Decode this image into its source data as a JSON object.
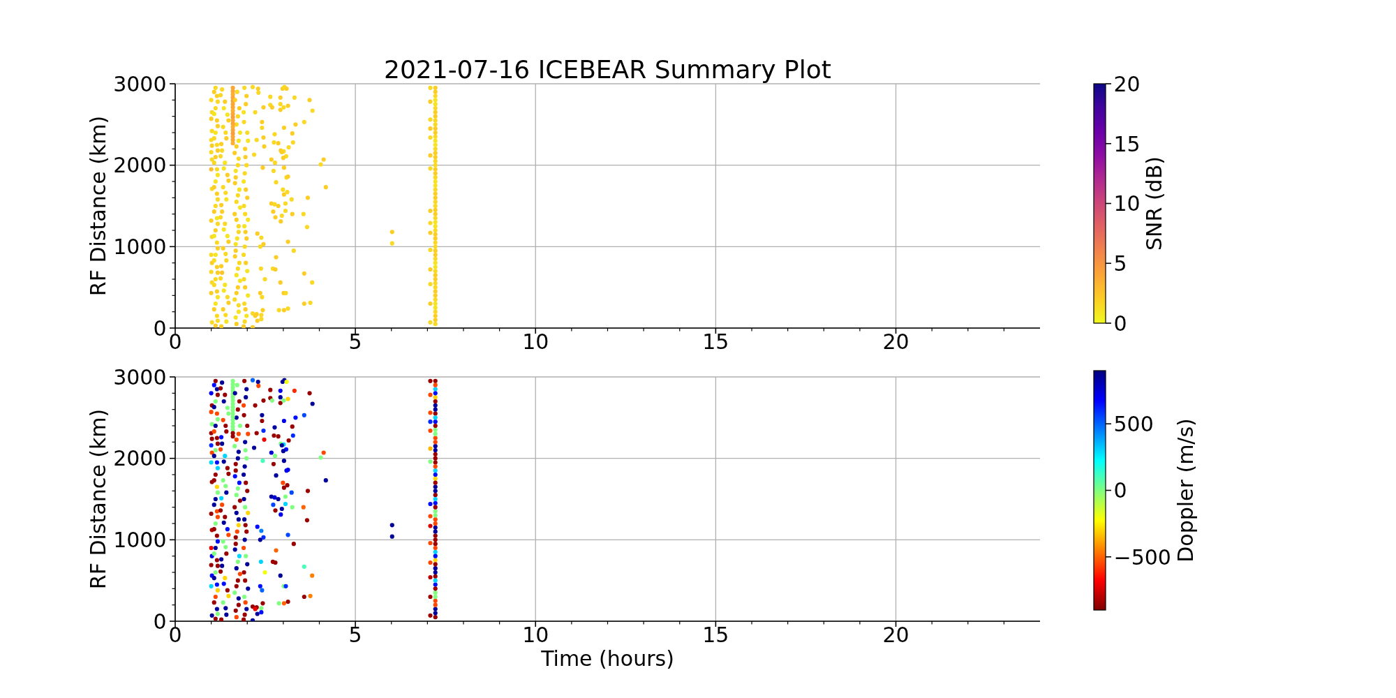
{
  "chart_data": [
    {
      "type": "scatter",
      "title": "2021-07-16 ICEBEAR Summary Plot",
      "ylabel": "RF Distance (km)",
      "clabel": "SNR (dB)",
      "x": [
        1.0,
        1.02,
        1.0,
        1.02,
        1.0,
        1.02,
        1.0,
        1.02,
        1.0,
        1.02,
        1.0,
        1.02,
        1.0,
        1.02,
        1.0,
        1.02,
        1.0,
        1.02,
        1.12,
        1.16,
        1.12,
        1.16,
        1.12,
        1.16,
        1.12,
        1.16,
        1.12,
        1.16,
        1.12,
        1.16,
        1.12,
        1.16,
        1.12,
        1.16,
        1.12,
        1.16,
        1.12,
        1.16,
        1.12,
        1.3,
        1.38,
        1.45,
        1.33,
        1.42,
        1.3,
        1.38,
        1.45,
        1.33,
        1.42,
        1.3,
        1.38,
        1.45,
        1.33,
        1.42,
        1.3,
        1.38,
        1.45,
        1.33,
        1.42,
        1.72,
        1.78,
        1.7,
        1.76,
        1.65,
        1.74,
        1.68,
        1.78,
        1.7,
        1.65,
        1.76,
        1.72,
        1.68,
        1.78,
        1.7,
        1.74,
        1.65,
        1.76,
        1.7,
        1.6,
        1.6,
        1.6,
        1.6,
        1.6,
        1.6,
        1.6,
        1.6,
        1.6,
        1.6,
        1.6,
        1.6,
        1.6,
        1.6,
        1.6,
        1.6,
        1.6,
        1.6,
        1.92,
        1.98,
        1.9,
        2.0,
        1.94,
        1.98,
        1.9,
        2.0,
        1.94,
        1.92,
        1.98,
        1.9,
        2.0,
        1.94,
        1.92,
        1.98,
        1.9,
        2.15,
        2.3,
        2.31,
        2.98,
        3.03,
        3.09,
        2.64,
        2.92,
        3.31,
        3.73,
        3.81,
        2.45,
        2.64,
        2.69,
        2.92,
        2.92,
        3.01,
        3.13,
        2.22,
        2.41,
        2.41,
        3.34,
        3.58,
        3.02,
        2.76,
        3.25,
        2.26,
        2.45,
        2.74,
        2.86,
        3.27,
        2.47,
        3.15,
        2.93,
        3.01,
        2.96,
        3.08,
        3.0,
        2.19,
        2.67,
        2.77,
        4.12,
        4.04,
        2.43,
        2.73,
        3.02,
        3.09,
        3.13,
        2.8,
        4.18,
        2.99,
        3.02,
        3.11,
        3.68,
        3.23,
        2.67,
        2.76,
        2.86,
        3.06,
        2.72,
        3.06,
        3.25,
        3.56,
        2.78,
        2.96,
        2.93,
        3.66,
        6.02,
        6.02,
        3.13,
        2.39,
        2.45,
        2.36,
        2.28,
        3.29,
        2.8,
        2.71,
        2.78,
        2.38,
        3.58,
        2.49,
        2.92,
        3.8,
        2.36,
        2.41,
        3.01,
        3.07,
        2.43,
        2.88,
        3.02,
        3.13,
        3.58,
        3.75,
        2.26,
        2.39,
        2.28,
        2.39,
        2.15,
        2.15,
        2.22,
        7.08,
        7.08,
        7.08,
        7.08,
        7.08,
        7.08,
        7.08,
        7.08,
        7.08,
        7.08,
        7.08,
        7.08,
        7.08,
        7.08,
        7.08,
        7.22,
        7.22,
        7.22,
        7.22,
        7.22,
        7.22,
        7.22,
        7.22,
        7.22,
        7.22,
        7.22,
        7.22,
        7.22,
        7.22,
        7.22,
        7.22,
        7.22,
        7.22,
        7.22,
        7.22,
        7.22,
        7.22,
        7.22,
        7.22,
        7.22,
        7.22,
        7.22,
        7.22,
        7.22,
        7.22,
        1.08,
        1.18,
        1.08,
        1.18,
        1.08,
        1.18,
        1.08,
        1.18,
        1.08,
        1.18,
        1.08,
        1.18,
        1.08,
        1.18,
        1.08,
        1.18,
        1.08,
        1.18,
        1.08,
        1.18,
        1.26,
        1.35,
        1.48,
        1.4,
        1.28,
        1.26,
        1.35,
        1.48,
        1.4,
        1.28,
        1.26,
        1.35,
        1.48,
        1.4,
        1.28,
        1.26,
        1.35,
        1.48,
        1.4,
        1.28,
        1.66,
        1.74,
        1.8,
        1.7,
        1.76,
        1.68,
        1.66,
        1.74,
        1.8,
        1.7,
        1.76,
        1.68,
        1.66,
        1.74,
        1.8,
        1.7,
        1.76,
        1.68,
        1.96,
        1.91,
        2.02,
        1.95,
        1.93,
        1.96,
        1.91,
        2.02,
        1.95,
        1.93,
        1.96,
        1.91,
        2.02,
        1.95,
        1.93,
        7.22,
        7.22,
        7.22,
        7.22,
        7.22,
        7.22,
        7.22,
        7.22,
        7.22,
        7.22,
        7.22,
        7.22,
        7.22,
        7.22,
        7.22,
        7.22,
        7.22,
        7.22,
        7.22,
        7.22,
        7.22,
        7.22,
        7.22,
        7.22,
        7.22,
        7.22,
        7.22,
        7.22,
        7.22
      ],
      "values": [
        2800,
        2650,
        2570,
        2420,
        2310,
        2240,
        2160,
        2070,
        1950,
        1710,
        1320,
        1120,
        900,
        800,
        690,
        560,
        430,
        70,
        2950,
        2850,
        2700,
        2550,
        2400,
        2250,
        2100,
        1950,
        1800,
        1650,
        1500,
        1350,
        1200,
        1050,
        900,
        750,
        600,
        450,
        300,
        150,
        30,
        2930,
        2780,
        2620,
        2470,
        2330,
        2180,
        2030,
        1880,
        1730,
        1580,
        1430,
        1280,
        1130,
        980,
        830,
        680,
        530,
        380,
        230,
        80,
        2900,
        2700,
        2500,
        2300,
        2150,
        2000,
        1850,
        1700,
        1550,
        1400,
        1250,
        1100,
        950,
        800,
        650,
        500,
        350,
        200,
        50,
        2950,
        2910,
        2870,
        2830,
        2790,
        2750,
        2710,
        2670,
        2630,
        2590,
        2550,
        2510,
        2470,
        2430,
        2390,
        2350,
        2310,
        2270,
        2950,
        2850,
        2650,
        2400,
        2200,
        2000,
        1800,
        1600,
        1400,
        1250,
        1100,
        900,
        700,
        500,
        300,
        150,
        20,
        2960,
        2940,
        2890,
        2940,
        2960,
        2940,
        2840,
        2830,
        2830,
        2800,
        2670,
        2710,
        2740,
        2710,
        2750,
        2680,
        2710,
        2730,
        2650,
        2530,
        2460,
        2500,
        2530,
        2460,
        2380,
        2390,
        2310,
        2340,
        2280,
        2270,
        2280,
        2230,
        2220,
        2180,
        2170,
        2160,
        2110,
        2090,
        2130,
        2070,
        2030,
        2070,
        2010,
        1970,
        1930,
        1970,
        1850,
        1860,
        1790,
        1730,
        1700,
        1640,
        1670,
        1600,
        1580,
        1530,
        1520,
        1500,
        1530,
        1430,
        1440,
        1400,
        1400,
        1360,
        1380,
        1310,
        1240,
        1180,
        1040,
        1060,
        1110,
        1030,
        1000,
        1160,
        950,
        870,
        730,
        720,
        730,
        670,
        600,
        560,
        560,
        430,
        380,
        430,
        430,
        220,
        220,
        220,
        240,
        300,
        310,
        170,
        160,
        90,
        110,
        10,
        180,
        150,
        2950,
        2780,
        2560,
        2450,
        2340,
        2120,
        1960,
        1440,
        1290,
        1170,
        960,
        720,
        540,
        300,
        70,
        50,
        150,
        250,
        350,
        450,
        550,
        650,
        750,
        850,
        950,
        1050,
        1150,
        1250,
        1350,
        1450,
        1550,
        1650,
        1750,
        1850,
        1950,
        2050,
        2150,
        2250,
        2350,
        2450,
        2550,
        2650,
        2750,
        2850,
        2950,
        2900,
        2780,
        2630,
        2480,
        2330,
        2180,
        2030,
        1880,
        1730,
        1580,
        1430,
        1280,
        1130,
        980,
        830,
        680,
        530,
        380,
        230,
        90,
        2860,
        2700,
        2550,
        2400,
        2260,
        2110,
        1960,
        1810,
        1660,
        1510,
        1360,
        1210,
        1060,
        910,
        760,
        610,
        460,
        310,
        160,
        20,
        2800,
        2600,
        2400,
        2230,
        2080,
        1930,
        1780,
        1630,
        1480,
        1330,
        1180,
        1030,
        880,
        730,
        580,
        430,
        280,
        130,
        2750,
        2530,
        2300,
        2100,
        1900,
        1700,
        1500,
        1330,
        1180,
        1000,
        800,
        600,
        400,
        230,
        80,
        100,
        200,
        300,
        400,
        500,
        600,
        700,
        800,
        900,
        1000,
        1100,
        1200,
        1300,
        1400,
        1500,
        1600,
        1700,
        1800,
        1900,
        2000,
        2100,
        2200,
        2300,
        2400,
        2500,
        2600,
        2700,
        2800,
        2900
      ],
      "cvalues": [
        1.5,
        1.5,
        2,
        1.5,
        1.5,
        2,
        1.5,
        1.5,
        3,
        1.5,
        2,
        1.5,
        1.5,
        2,
        1.5,
        1.5,
        2,
        1.5,
        1.5,
        2,
        1.5,
        2,
        1,
        1.5,
        2,
        1.5,
        1,
        2,
        1.5,
        1,
        2,
        1.5,
        1,
        2,
        1.5,
        2,
        1,
        1.5,
        2,
        1.5,
        2,
        1,
        1.5,
        2,
        1.5,
        1,
        2,
        1.5,
        1,
        2,
        1.5,
        1,
        2,
        1.5,
        2.5,
        1,
        1.5,
        2,
        1,
        1.5,
        2,
        1.5,
        1,
        2,
        1.5,
        2,
        1,
        1.5,
        2,
        1.5,
        1,
        2,
        1.5,
        1,
        2,
        1.5,
        1,
        2,
        4,
        4,
        3.5,
        4,
        4.5,
        4,
        4,
        3.5,
        4,
        4.5,
        4,
        4,
        3.5,
        4,
        4.5,
        4,
        4,
        3.5,
        1.5,
        2,
        1,
        1.5,
        2,
        1.5,
        1,
        2,
        1.5,
        1,
        2,
        1.5,
        1,
        2,
        1.5,
        1,
        2,
        1.5,
        2,
        1.5,
        2,
        1.5,
        2,
        1.5,
        2,
        1.5,
        2,
        1.5,
        2,
        1.5,
        2,
        1.5,
        2,
        1.5,
        2,
        1.5,
        2,
        1.5,
        2,
        1.5,
        2,
        1.5,
        2,
        1.5,
        2,
        1.5,
        2,
        1.5,
        2,
        1.5,
        2,
        1.5,
        2,
        1.5,
        2,
        1.5,
        2,
        1.5,
        2,
        1.5,
        2,
        1.5,
        2,
        1.5,
        2,
        1.5,
        2,
        1.5,
        2,
        1.5,
        2,
        1.5,
        2,
        1.5,
        2,
        1.5,
        2,
        1.5,
        2,
        1.5,
        2,
        1.5,
        2,
        1.5,
        2,
        1.5,
        2,
        1.5,
        2,
        1.5,
        2,
        1.5,
        2,
        1.5,
        2,
        1.5,
        2,
        1.5,
        2,
        1.5,
        2,
        1.5,
        2,
        1.5,
        2,
        1.5,
        2,
        1.5,
        2,
        1.5,
        2,
        1.5,
        2,
        1.5,
        2,
        1.5,
        2,
        1.5,
        2,
        1.5,
        2,
        1.5,
        2,
        1.5,
        2,
        1.5,
        2,
        1.5,
        2,
        1.5,
        2,
        1.5,
        1.5,
        2,
        1,
        1.5,
        2,
        1.5,
        2,
        1,
        1.5,
        2,
        1.5,
        2,
        1,
        1.5,
        2,
        1.5,
        2,
        1,
        1.5,
        2,
        1.5,
        2,
        1,
        1.5,
        2,
        1.5,
        2,
        1,
        1.5,
        2,
        2,
        1.5,
        1,
        2,
        1.5,
        2,
        1.5,
        1,
        2,
        1.5,
        2,
        1.5,
        1,
        2,
        1.5,
        2,
        1.5,
        1,
        2,
        1.5,
        1.5,
        1,
        2,
        1.5,
        2,
        1.5,
        1,
        2,
        1.5,
        2,
        1.5,
        1,
        2,
        1.5,
        2,
        1.5,
        1,
        2,
        1.5,
        2,
        2,
        1.5,
        1,
        2,
        1.5,
        1,
        2,
        1.5,
        1,
        2,
        1.5,
        1,
        2,
        1.5,
        1,
        2,
        1.5,
        1,
        2,
        1.5,
        1,
        2,
        1.5,
        2,
        1.5,
        1,
        2,
        1.5,
        2,
        1.5,
        1,
        2,
        1.5,
        2,
        1.5,
        1,
        2,
        1.5,
        2,
        1.5,
        1,
        2,
        1.5,
        2,
        1.5,
        1,
        2,
        1.5,
        2,
        1.5,
        1,
        2,
        1.5,
        2,
        1.5,
        1,
        2,
        1.5,
        2,
        1.5,
        1,
        2
      ],
      "xlim": [
        0,
        24
      ],
      "xticks": [
        0,
        {
          "value": 1,
          "label": null
        },
        {
          "value": 2,
          "label": null
        },
        {
          "value": 3,
          "label": null
        },
        {
          "value": 4,
          "label": null
        },
        5,
        {
          "value": 6,
          "label": null
        },
        {
          "value": 7,
          "label": null
        },
        {
          "value": 8,
          "label": null
        },
        {
          "value": 9,
          "label": null
        },
        10,
        {
          "value": 11,
          "label": null
        },
        {
          "value": 12,
          "label": null
        },
        {
          "value": 13,
          "label": null
        },
        {
          "value": 14,
          "label": null
        },
        15,
        {
          "value": 16,
          "label": null
        },
        {
          "value": 17,
          "label": null
        },
        {
          "value": 18,
          "label": null
        },
        {
          "value": 19,
          "label": null
        },
        20,
        {
          "value": 21,
          "label": null
        },
        {
          "value": 22,
          "label": null
        },
        {
          "value": 23,
          "label": null
        }
      ],
      "ylim": [
        0,
        3000
      ],
      "yticks": [
        0,
        {
          "value": 200,
          "label": null
        },
        {
          "value": 400,
          "label": null
        },
        {
          "value": 600,
          "label": null
        },
        {
          "value": 800,
          "label": null
        },
        1000,
        {
          "value": 1200,
          "label": null
        },
        {
          "value": 1400,
          "label": null
        },
        {
          "value": 1600,
          "label": null
        },
        {
          "value": 1800,
          "label": null
        },
        2000,
        {
          "value": 2200,
          "label": null
        },
        {
          "value": 2400,
          "label": null
        },
        {
          "value": 2600,
          "label": null
        },
        {
          "value": 2800,
          "label": null
        },
        3000
      ],
      "clim": [
        0,
        20
      ],
      "cticks": [
        0,
        5,
        10,
        15,
        20
      ],
      "grid": true,
      "marker": "circle"
    },
    {
      "type": "scatter",
      "xlabel": "Time (hours)",
      "ylabel": "RF Distance (km)",
      "clabel": "Doppler (m/s)",
      "x": [
        1.0,
        1.02,
        1.0,
        1.02,
        1.0,
        1.02,
        1.0,
        1.02,
        1.0,
        1.02,
        1.0,
        1.02,
        1.0,
        1.02,
        1.0,
        1.02,
        1.0,
        1.02,
        1.12,
        1.16,
        1.12,
        1.16,
        1.12,
        1.16,
        1.12,
        1.16,
        1.12,
        1.16,
        1.12,
        1.16,
        1.12,
        1.16,
        1.12,
        1.16,
        1.12,
        1.16,
        1.12,
        1.16,
        1.12,
        1.3,
        1.38,
        1.45,
        1.33,
        1.42,
        1.3,
        1.38,
        1.45,
        1.33,
        1.42,
        1.3,
        1.38,
        1.45,
        1.33,
        1.42,
        1.3,
        1.38,
        1.45,
        1.33,
        1.42,
        1.72,
        1.78,
        1.7,
        1.76,
        1.65,
        1.74,
        1.68,
        1.78,
        1.7,
        1.65,
        1.76,
        1.72,
        1.68,
        1.78,
        1.7,
        1.74,
        1.65,
        1.76,
        1.7,
        1.6,
        1.6,
        1.6,
        1.6,
        1.6,
        1.6,
        1.6,
        1.6,
        1.6,
        1.6,
        1.6,
        1.6,
        1.6,
        1.6,
        1.6,
        1.6,
        1.6,
        1.6,
        1.92,
        1.98,
        1.9,
        2.0,
        1.94,
        1.98,
        1.9,
        2.0,
        1.94,
        1.92,
        1.98,
        1.9,
        2.0,
        1.94,
        1.92,
        1.98,
        1.9,
        2.15,
        2.3,
        2.31,
        2.98,
        3.03,
        3.09,
        2.64,
        2.92,
        3.31,
        3.73,
        3.81,
        2.45,
        2.64,
        2.69,
        2.92,
        2.92,
        3.01,
        3.13,
        2.22,
        2.41,
        2.41,
        3.34,
        3.58,
        3.02,
        2.76,
        3.25,
        2.26,
        2.45,
        2.74,
        2.86,
        3.27,
        2.47,
        3.15,
        2.93,
        3.01,
        2.96,
        3.08,
        3.0,
        2.19,
        2.67,
        2.77,
        4.12,
        4.04,
        2.43,
        2.73,
        3.02,
        3.09,
        3.13,
        2.8,
        4.18,
        2.99,
        3.02,
        3.11,
        3.68,
        3.23,
        2.67,
        2.76,
        2.86,
        3.06,
        2.72,
        3.06,
        3.25,
        3.56,
        2.78,
        2.96,
        2.93,
        3.66,
        6.02,
        6.02,
        3.13,
        2.39,
        2.45,
        2.36,
        2.28,
        3.29,
        2.8,
        2.71,
        2.78,
        2.38,
        3.58,
        2.49,
        2.92,
        3.8,
        2.36,
        2.41,
        3.01,
        3.07,
        2.43,
        2.88,
        3.02,
        3.13,
        3.58,
        3.75,
        2.26,
        2.39,
        2.28,
        2.39,
        2.15,
        2.15,
        2.22,
        7.08,
        7.08,
        7.08,
        7.08,
        7.08,
        7.08,
        7.08,
        7.08,
        7.08,
        7.08,
        7.08,
        7.08,
        7.08,
        7.08,
        7.08,
        7.22,
        7.22,
        7.22,
        7.22,
        7.22,
        7.22,
        7.22,
        7.22,
        7.22,
        7.22,
        7.22,
        7.22,
        7.22,
        7.22,
        7.22,
        7.22,
        7.22,
        7.22,
        7.22,
        7.22,
        7.22,
        7.22,
        7.22,
        7.22,
        7.22,
        7.22,
        7.22,
        7.22,
        7.22,
        7.22,
        1.08,
        1.18,
        1.08,
        1.18,
        1.08,
        1.18,
        1.08,
        1.18,
        1.08,
        1.18,
        1.08,
        1.18,
        1.08,
        1.18,
        1.08,
        1.18,
        1.08,
        1.18,
        1.08,
        1.18,
        1.26,
        1.35,
        1.48,
        1.4,
        1.28,
        1.26,
        1.35,
        1.48,
        1.4,
        1.28,
        1.26,
        1.35,
        1.48,
        1.4,
        1.28,
        1.26,
        1.35,
        1.48,
        1.4,
        1.28,
        1.66,
        1.74,
        1.8,
        1.7,
        1.76,
        1.68,
        1.66,
        1.74,
        1.8,
        1.7,
        1.76,
        1.68,
        1.66,
        1.74,
        1.8,
        1.7,
        1.76,
        1.68,
        1.96,
        1.91,
        2.02,
        1.95,
        1.93,
        1.96,
        1.91,
        2.02,
        1.95,
        1.93,
        1.96,
        1.91,
        2.02,
        1.95,
        1.93,
        7.22,
        7.22,
        7.22,
        7.22,
        7.22,
        7.22,
        7.22,
        7.22,
        7.22,
        7.22,
        7.22,
        7.22,
        7.22,
        7.22,
        7.22,
        7.22,
        7.22,
        7.22,
        7.22,
        7.22,
        7.22,
        7.22,
        7.22,
        7.22,
        7.22,
        7.22,
        7.22,
        7.22,
        7.22
      ],
      "values": [
        2800,
        2650,
        2570,
        2420,
        2310,
        2240,
        2160,
        2070,
        1950,
        1710,
        1320,
        1120,
        900,
        800,
        690,
        560,
        430,
        70,
        2950,
        2850,
        2700,
        2550,
        2400,
        2250,
        2100,
        1950,
        1800,
        1650,
        1500,
        1350,
        1200,
        1050,
        900,
        750,
        600,
        450,
        300,
        150,
        30,
        2930,
        2780,
        2620,
        2470,
        2330,
        2180,
        2030,
        1880,
        1730,
        1580,
        1430,
        1280,
        1130,
        980,
        830,
        680,
        530,
        380,
        230,
        80,
        2900,
        2700,
        2500,
        2300,
        2150,
        2000,
        1850,
        1700,
        1550,
        1400,
        1250,
        1100,
        950,
        800,
        650,
        500,
        350,
        200,
        50,
        2950,
        2910,
        2870,
        2830,
        2790,
        2750,
        2710,
        2670,
        2630,
        2590,
        2550,
        2510,
        2470,
        2430,
        2390,
        2350,
        2310,
        2270,
        2950,
        2850,
        2650,
        2400,
        2200,
        2000,
        1800,
        1600,
        1400,
        1250,
        1100,
        900,
        700,
        500,
        300,
        150,
        20,
        2960,
        2940,
        2890,
        2940,
        2960,
        2940,
        2840,
        2830,
        2830,
        2800,
        2670,
        2710,
        2740,
        2710,
        2750,
        2680,
        2710,
        2730,
        2650,
        2530,
        2460,
        2500,
        2530,
        2460,
        2380,
        2390,
        2310,
        2340,
        2280,
        2270,
        2280,
        2230,
        2220,
        2180,
        2170,
        2160,
        2110,
        2090,
        2130,
        2070,
        2030,
        2070,
        2010,
        1970,
        1930,
        1970,
        1850,
        1860,
        1790,
        1730,
        1700,
        1640,
        1670,
        1600,
        1580,
        1530,
        1520,
        1500,
        1530,
        1430,
        1440,
        1400,
        1400,
        1360,
        1380,
        1310,
        1240,
        1180,
        1040,
        1060,
        1110,
        1030,
        1000,
        1160,
        950,
        870,
        730,
        720,
        730,
        670,
        600,
        560,
        560,
        430,
        380,
        430,
        430,
        220,
        220,
        220,
        240,
        300,
        310,
        170,
        160,
        90,
        110,
        10,
        180,
        150,
        2950,
        2780,
        2560,
        2450,
        2340,
        2120,
        1960,
        1440,
        1290,
        1170,
        960,
        720,
        540,
        300,
        70,
        50,
        150,
        250,
        350,
        450,
        550,
        650,
        750,
        850,
        950,
        1050,
        1150,
        1250,
        1350,
        1450,
        1550,
        1650,
        1750,
        1850,
        1950,
        2050,
        2150,
        2250,
        2350,
        2450,
        2550,
        2650,
        2750,
        2850,
        2950,
        2900,
        2780,
        2630,
        2480,
        2330,
        2180,
        2030,
        1880,
        1730,
        1580,
        1430,
        1280,
        1130,
        980,
        830,
        680,
        530,
        380,
        230,
        90,
        2860,
        2700,
        2550,
        2400,
        2260,
        2110,
        1960,
        1810,
        1660,
        1510,
        1360,
        1210,
        1060,
        910,
        760,
        610,
        460,
        310,
        160,
        20,
        2800,
        2600,
        2400,
        2230,
        2080,
        1930,
        1780,
        1630,
        1480,
        1330,
        1180,
        1030,
        880,
        730,
        580,
        430,
        280,
        130,
        2750,
        2530,
        2300,
        2100,
        1900,
        1700,
        1500,
        1330,
        1180,
        1000,
        800,
        600,
        400,
        230,
        80,
        100,
        200,
        300,
        400,
        500,
        600,
        700,
        800,
        900,
        1000,
        1100,
        1200,
        1300,
        1400,
        1500,
        1600,
        1700,
        1800,
        1900,
        2000,
        2100,
        2200,
        2300,
        2400,
        2500,
        2600,
        2700,
        2800,
        2900
      ],
      "cvalues": [
        700,
        -850,
        -550,
        0,
        -850,
        -850,
        600,
        -550,
        300,
        -850,
        -850,
        -800,
        -700,
        700,
        -850,
        650,
        300,
        850,
        -850,
        850,
        0,
        -550,
        850,
        -850,
        0,
        650,
        -850,
        -300,
        850,
        -550,
        0,
        -850,
        850,
        -850,
        0,
        650,
        -550,
        850,
        -850,
        850,
        -850,
        0,
        -550,
        -850,
        850,
        300,
        -850,
        0,
        850,
        -550,
        -850,
        650,
        0,
        -850,
        850,
        -300,
        -850,
        0,
        850,
        0,
        -850,
        850,
        -550,
        0,
        850,
        -850,
        650,
        0,
        -850,
        850,
        -550,
        -850,
        300,
        850,
        -850,
        0,
        -850,
        -550,
        0,
        0,
        0,
        0,
        0,
        0,
        0,
        0,
        0,
        0,
        0,
        0,
        0,
        0,
        0,
        0,
        -850,
        -850,
        -850,
        850,
        -550,
        -850,
        850,
        0,
        850,
        -850,
        0,
        850,
        -850,
        -550,
        850,
        -850,
        0,
        850,
        -850,
        500,
        850,
        -550,
        850,
        850,
        -200,
        -850,
        700,
        -600,
        -850,
        850,
        -850,
        -850,
        0,
        850,
        -850,
        0,
        -300,
        -850,
        850,
        -850,
        650,
        550,
        700,
        850,
        -850,
        -850,
        600,
        -850,
        -850,
        600,
        -700,
        -850,
        0,
        300,
        850,
        650,
        850,
        850,
        750,
        0,
        -550,
        0,
        100,
        -850,
        850,
        700,
        700,
        850,
        850,
        -550,
        -850,
        -850,
        -850,
        550,
        850,
        750,
        850,
        0,
        550,
        300,
        0,
        -500,
        -850,
        850,
        700,
        -850,
        850,
        850,
        550,
        450,
        600,
        850,
        650,
        -850,
        -500,
        -850,
        -850,
        300,
        100,
        -200,
        850,
        -450,
        650,
        500,
        0,
        600,
        -850,
        0,
        -500,
        -850,
        -850,
        -450,
        -850,
        0,
        850,
        650,
        850,
        -850,
        -700,
        -850,
        -550,
        -550,
        600,
        -550,
        -350,
        0,
        650,
        -550,
        -750,
        -550,
        -550,
        -800,
        -850,
        -850,
        -850,
        850,
        -550,
        0,
        650,
        -850,
        850,
        -300,
        300,
        -850,
        -850,
        850,
        -550,
        0,
        650,
        -850,
        850,
        -300,
        300,
        -850,
        -850,
        850,
        -550,
        0,
        650,
        -850,
        850,
        -300,
        300,
        -850,
        650,
        -850,
        850,
        0,
        -550,
        -850,
        850,
        300,
        -850,
        0,
        850,
        -550,
        -850,
        650,
        0,
        -850,
        850,
        -300,
        -850,
        0,
        -850,
        850,
        0,
        -850,
        650,
        -550,
        850,
        -850,
        0,
        300,
        -850,
        850,
        -550,
        0,
        850,
        -850,
        650,
        -300,
        850,
        -850,
        850,
        -850,
        0,
        -550,
        850,
        -850,
        650,
        0,
        -850,
        850,
        -300,
        -850,
        850,
        0,
        -550,
        -850,
        850,
        -850,
        850,
        -850,
        -550,
        0,
        850,
        -850,
        850,
        -300,
        -850,
        850,
        0,
        -850,
        850,
        -550,
        -850,
        850,
        -550,
        0,
        -850,
        300,
        850,
        -850,
        650,
        -550,
        -850,
        850,
        -550,
        0,
        -850,
        300,
        850,
        -850,
        650,
        -550,
        -850,
        850,
        -550,
        0,
        -850,
        300,
        850,
        -850,
        650,
        -550
      ],
      "xlim": [
        0,
        24
      ],
      "xticks": [
        0,
        {
          "value": 1,
          "label": null
        },
        {
          "value": 2,
          "label": null
        },
        {
          "value": 3,
          "label": null
        },
        {
          "value": 4,
          "label": null
        },
        5,
        {
          "value": 6,
          "label": null
        },
        {
          "value": 7,
          "label": null
        },
        {
          "value": 8,
          "label": null
        },
        {
          "value": 9,
          "label": null
        },
        10,
        {
          "value": 11,
          "label": null
        },
        {
          "value": 12,
          "label": null
        },
        {
          "value": 13,
          "label": null
        },
        {
          "value": 14,
          "label": null
        },
        15,
        {
          "value": 16,
          "label": null
        },
        {
          "value": 17,
          "label": null
        },
        {
          "value": 18,
          "label": null
        },
        {
          "value": 19,
          "label": null
        },
        20,
        {
          "value": 21,
          "label": null
        },
        {
          "value": 22,
          "label": null
        },
        {
          "value": 23,
          "label": null
        }
      ],
      "ylim": [
        0,
        3000
      ],
      "yticks": [
        0,
        {
          "value": 200,
          "label": null
        },
        {
          "value": 400,
          "label": null
        },
        {
          "value": 600,
          "label": null
        },
        {
          "value": 800,
          "label": null
        },
        1000,
        {
          "value": 1200,
          "label": null
        },
        {
          "value": 1400,
          "label": null
        },
        {
          "value": 1600,
          "label": null
        },
        {
          "value": 1800,
          "label": null
        },
        2000,
        {
          "value": 2200,
          "label": null
        },
        {
          "value": 2400,
          "label": null
        },
        {
          "value": 2600,
          "label": null
        },
        {
          "value": 2800,
          "label": null
        },
        3000
      ],
      "clim": [
        -900,
        900
      ],
      "cticks": [
        {
          "value": -500,
          "label": "−500"
        },
        0,
        500
      ],
      "grid": true,
      "marker": "circle"
    }
  ]
}
